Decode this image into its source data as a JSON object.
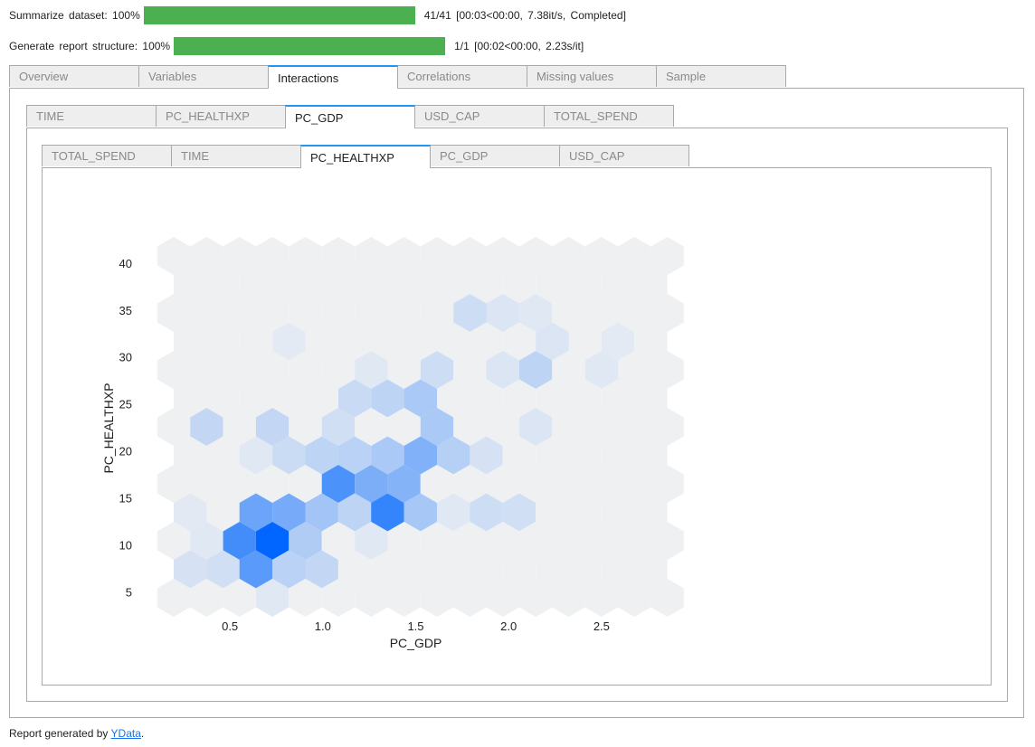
{
  "progress": [
    {
      "label": "Summarize dataset: 100%",
      "percent": 100,
      "status": "41/41  [00:03<00:00,   7.38it/s,  Completed]"
    },
    {
      "label": "Generate report structure: 100%",
      "percent": 100,
      "status": "1/1  [00:02<00:00,   2.23s/it]"
    }
  ],
  "tabs_level1": [
    {
      "label": "Overview",
      "active": false
    },
    {
      "label": "Variables",
      "active": false
    },
    {
      "label": "Interactions",
      "active": true
    },
    {
      "label": "Correlations",
      "active": false
    },
    {
      "label": "Missing values",
      "active": false
    },
    {
      "label": "Sample",
      "active": false
    }
  ],
  "tabs_level2": [
    {
      "label": "TIME",
      "active": false
    },
    {
      "label": "PC_HEALTHXP",
      "active": false
    },
    {
      "label": "PC_GDP",
      "active": true
    },
    {
      "label": "USD_CAP",
      "active": false
    },
    {
      "label": "TOTAL_SPEND",
      "active": false
    }
  ],
  "tabs_level3": [
    {
      "label": "TOTAL_SPEND",
      "active": false
    },
    {
      "label": "TIME",
      "active": false
    },
    {
      "label": "PC_HEALTHXP",
      "active": true
    },
    {
      "label": "PC_GDP",
      "active": false
    },
    {
      "label": "USD_CAP",
      "active": false
    }
  ],
  "chart_data": {
    "type": "heatmap",
    "subtype": "hexbin",
    "xlabel": "PC_GDP",
    "ylabel": "PC_HEALTHXP",
    "x_ticks": [
      0.5,
      1.0,
      1.5,
      2.0,
      2.5
    ],
    "x_tick_labels": [
      "0.5",
      "1.0",
      "1.5",
      "2.0",
      "2.5"
    ],
    "y_ticks": [
      5,
      10,
      15,
      20,
      25,
      30,
      35,
      40
    ],
    "y_tick_labels": [
      "5",
      "10",
      "15",
      "20",
      "25",
      "30",
      "35",
      "40"
    ],
    "xlim": [
      0.1,
      2.9
    ],
    "ylim": [
      4.0,
      42.0
    ],
    "colors": {
      "low": "#eef0f2",
      "high": "#0066ff"
    },
    "grid": false,
    "bins": [
      {
        "x": 0.75,
        "y": 10.0,
        "count": 1.0
      },
      {
        "x": 0.55,
        "y": 10.0,
        "count": 0.72
      },
      {
        "x": 1.3,
        "y": 15.0,
        "count": 0.78
      },
      {
        "x": 1.1,
        "y": 15.0,
        "count": 0.68
      },
      {
        "x": 0.65,
        "y": 8.9,
        "count": 0.62
      },
      {
        "x": 0.65,
        "y": 12.2,
        "count": 0.55
      },
      {
        "x": 0.75,
        "y": 14.4,
        "count": 0.5
      },
      {
        "x": 0.85,
        "y": 12.2,
        "count": 0.45
      },
      {
        "x": 1.2,
        "y": 16.6,
        "count": 0.48
      },
      {
        "x": 1.5,
        "y": 16.6,
        "count": 0.44
      },
      {
        "x": 1.5,
        "y": 21.0,
        "count": 0.46
      },
      {
        "x": 1.4,
        "y": 16.6,
        "count": 0.36
      },
      {
        "x": 1.0,
        "y": 16.6,
        "count": 0.34
      },
      {
        "x": 0.95,
        "y": 14.4,
        "count": 0.32
      },
      {
        "x": 1.6,
        "y": 14.4,
        "count": 0.3
      },
      {
        "x": 1.4,
        "y": 21.0,
        "count": 0.28
      },
      {
        "x": 1.6,
        "y": 21.0,
        "count": 0.28
      },
      {
        "x": 1.5,
        "y": 25.5,
        "count": 0.28
      },
      {
        "x": 1.55,
        "y": 18.8,
        "count": 0.32
      },
      {
        "x": 1.45,
        "y": 19.5,
        "count": 0.26
      },
      {
        "x": 1.75,
        "y": 18.8,
        "count": 0.24
      },
      {
        "x": 0.95,
        "y": 10.0,
        "count": 0.26
      },
      {
        "x": 0.95,
        "y": 12.2,
        "count": 0.22
      },
      {
        "x": 1.05,
        "y": 12.2,
        "count": 0.24
      },
      {
        "x": 0.8,
        "y": 8.9,
        "count": 0.22
      },
      {
        "x": 1.15,
        "y": 12.2,
        "count": 0.2
      },
      {
        "x": 1.45,
        "y": 14.4,
        "count": 0.24
      },
      {
        "x": 1.25,
        "y": 18.8,
        "count": 0.22
      },
      {
        "x": 1.05,
        "y": 19.5,
        "count": 0.2
      },
      {
        "x": 1.35,
        "y": 25.5,
        "count": 0.2
      },
      {
        "x": 1.25,
        "y": 25.5,
        "count": 0.16
      },
      {
        "x": 0.95,
        "y": 21.0,
        "count": 0.16
      },
      {
        "x": 0.85,
        "y": 21.0,
        "count": 0.15
      },
      {
        "x": 0.8,
        "y": 22.3,
        "count": 0.18
      },
      {
        "x": 0.35,
        "y": 21.0,
        "count": 0.18
      },
      {
        "x": 1.65,
        "y": 29.0,
        "count": 0.14
      },
      {
        "x": 1.8,
        "y": 33.5,
        "count": 0.14
      },
      {
        "x": 2.2,
        "y": 29.0,
        "count": 0.2
      },
      {
        "x": 1.9,
        "y": 12.0,
        "count": 0.14
      },
      {
        "x": 2.05,
        "y": 12.0,
        "count": 0.12
      },
      {
        "x": 0.3,
        "y": 8.0,
        "count": 0.1
      },
      {
        "x": 0.4,
        "y": 8.0,
        "count": 0.12
      },
      {
        "x": 0.5,
        "y": 6.0,
        "count": 0.1
      },
      {
        "x": 0.95,
        "y": 8.9,
        "count": 0.18
      },
      {
        "x": 1.0,
        "y": 23.5,
        "count": 0.12
      },
      {
        "x": 1.15,
        "y": 23.5,
        "count": 0.12
      },
      {
        "x": 1.6,
        "y": 23.5,
        "count": 0.12
      },
      {
        "x": 2.1,
        "y": 24.0,
        "count": 0.08
      },
      {
        "x": 2.15,
        "y": 21.0,
        "count": 0.08
      },
      {
        "x": 1.85,
        "y": 21.0,
        "count": 0.1
      },
      {
        "x": 1.95,
        "y": 27.0,
        "count": 0.08
      },
      {
        "x": 2.25,
        "y": 33.0,
        "count": 0.08
      },
      {
        "x": 2.5,
        "y": 29.0,
        "count": 0.06
      },
      {
        "x": 2.1,
        "y": 35.5,
        "count": 0.06
      },
      {
        "x": 1.9,
        "y": 35.0,
        "count": 0.08
      },
      {
        "x": 1.3,
        "y": 27.5,
        "count": 0.06
      },
      {
        "x": 0.65,
        "y": 19.5,
        "count": 0.06
      },
      {
        "x": 1.7,
        "y": 12.0,
        "count": 0.06
      },
      {
        "x": 1.3,
        "y": 12.0,
        "count": 0.06
      },
      {
        "x": 0.3,
        "y": 10.0,
        "count": 0.06
      },
      {
        "x": 0.3,
        "y": 12.2,
        "count": 0.05
      },
      {
        "x": 0.75,
        "y": 6.0,
        "count": 0.06
      },
      {
        "x": 0.8,
        "y": 30.5,
        "count": 0.04
      },
      {
        "x": 2.6,
        "y": 33.5,
        "count": 0.04
      }
    ]
  },
  "footer": {
    "prefix": "Report generated by ",
    "link": "YData",
    "suffix": "."
  }
}
